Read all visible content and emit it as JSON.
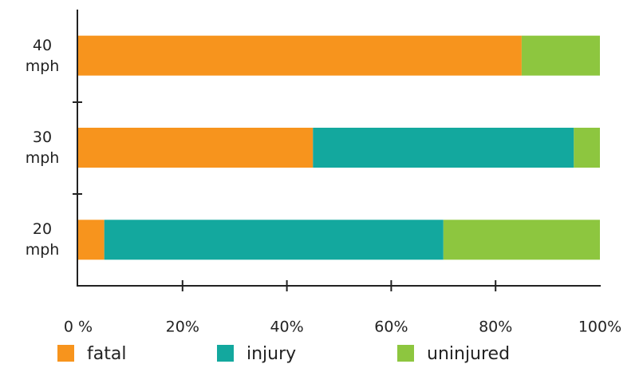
{
  "chart_data": {
    "type": "stacked_barh",
    "categories": [
      "40 mph",
      "30 mph",
      "20 mph"
    ],
    "series": [
      {
        "name": "fatal",
        "color": "#f7941d",
        "values": [
          85,
          45,
          5
        ]
      },
      {
        "name": "injury",
        "color": "#13a89e",
        "values": [
          0,
          50,
          65
        ]
      },
      {
        "name": "uninjured",
        "color": "#8dc63f",
        "values": [
          15,
          5,
          30
        ]
      }
    ],
    "xlim": [
      0,
      100
    ],
    "xticks": [
      {
        "value": 0,
        "label": "0 %"
      },
      {
        "value": 20,
        "label": "20%"
      },
      {
        "value": 40,
        "label": "40%"
      },
      {
        "value": 60,
        "label": "60%"
      },
      {
        "value": 80,
        "label": "80%"
      },
      {
        "value": 100,
        "label": "100%"
      }
    ]
  }
}
